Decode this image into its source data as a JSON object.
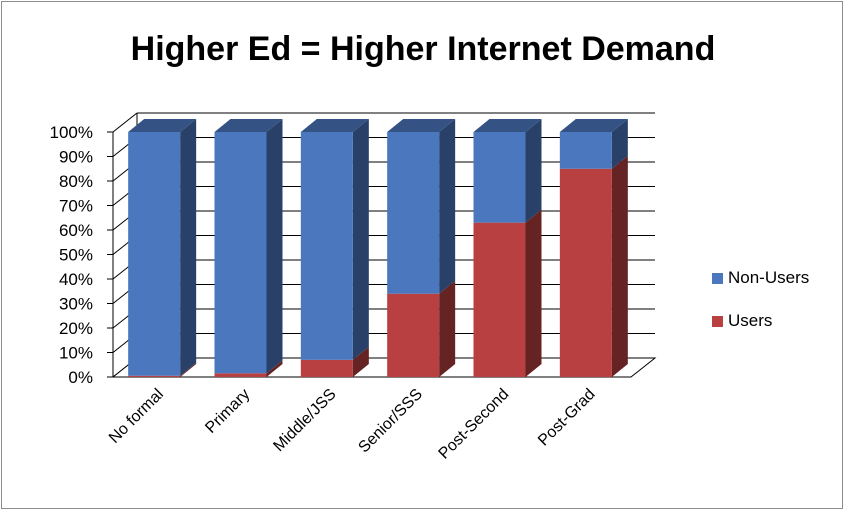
{
  "chart_data": {
    "type": "bar",
    "stacked": true,
    "percent": true,
    "three_d": true,
    "title": "Higher Ed = Higher Internet Demand",
    "categories": [
      "No formal",
      "Primary",
      "Middle/JSS",
      "Senior/SSS",
      "Post-Second",
      "Post-Grad"
    ],
    "series": [
      {
        "name": "Users",
        "color": "#b84040",
        "values": [
          0.5,
          1.5,
          7,
          34,
          63,
          85
        ]
      },
      {
        "name": "Non-Users",
        "color": "#4a77bd",
        "values": [
          99.5,
          98.5,
          93,
          66,
          37,
          15
        ]
      }
    ],
    "ylim": [
      0,
      100
    ],
    "yticks": [
      "0%",
      "10%",
      "20%",
      "30%",
      "40%",
      "50%",
      "60%",
      "70%",
      "80%",
      "90%",
      "100%"
    ],
    "grid": true,
    "legend_position": "right",
    "legend_order": [
      "Non-Users",
      "Users"
    ]
  }
}
